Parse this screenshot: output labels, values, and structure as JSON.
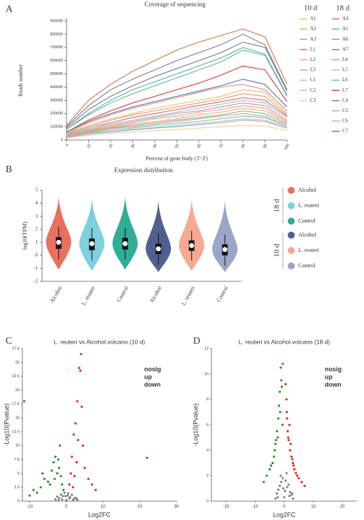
{
  "chart_data": [
    {
      "panel": "A",
      "type": "line",
      "title": "Coverage of sequencing",
      "xlabel": "Percent of gene body (5'-3')",
      "ylabel": "Reads number",
      "xlim": [
        0,
        100
      ],
      "xticks": [
        0,
        10,
        20,
        30,
        40,
        50,
        60,
        70,
        80,
        90,
        100
      ],
      "ylim": [
        0,
        900000
      ],
      "yticks": [
        0,
        100000,
        200000,
        300000,
        400000,
        500000,
        600000,
        700000,
        800000,
        900000
      ],
      "x": [
        0,
        10,
        20,
        30,
        40,
        50,
        60,
        70,
        80,
        90,
        100
      ],
      "series_groups": [
        {
          "name": "10 d",
          "series": [
            {
              "name": "A1",
              "color": "#f0c070",
              "values": [
                50000,
                110000,
                160000,
                200000,
                240000,
                270000,
                300000,
                330000,
                380000,
                360000,
                200000
              ]
            },
            {
              "name": "A2",
              "color": "#d9a080",
              "values": [
                45000,
                100000,
                150000,
                190000,
                220000,
                250000,
                280000,
                310000,
                350000,
                330000,
                190000
              ]
            },
            {
              "name": "A3",
              "color": "#c8a090",
              "values": [
                35000,
                80000,
                110000,
                140000,
                170000,
                200000,
                220000,
                250000,
                280000,
                260000,
                150000
              ]
            },
            {
              "name": "L1",
              "color": "#e87060",
              "values": [
                40000,
                90000,
                130000,
                170000,
                200000,
                230000,
                260000,
                290000,
                320000,
                300000,
                180000
              ]
            },
            {
              "name": "L2",
              "color": "#f0a0a0",
              "values": [
                35000,
                75000,
                100000,
                130000,
                160000,
                180000,
                210000,
                230000,
                260000,
                240000,
                140000
              ]
            },
            {
              "name": "L3",
              "color": "#80c0d0",
              "values": [
                25000,
                55000,
                75000,
                90000,
                110000,
                125000,
                140000,
                160000,
                180000,
                170000,
                100000
              ]
            },
            {
              "name": "C1",
              "color": "#a0d0b0",
              "values": [
                20000,
                50000,
                65000,
                80000,
                95000,
                110000,
                125000,
                140000,
                160000,
                150000,
                90000
              ]
            },
            {
              "name": "C2",
              "color": "#f0b080",
              "values": [
                30000,
                70000,
                95000,
                120000,
                140000,
                160000,
                190000,
                210000,
                240000,
                220000,
                130000
              ]
            },
            {
              "name": "C3",
              "color": "#f8d0a0",
              "values": [
                15000,
                35000,
                50000,
                60000,
                70000,
                80000,
                90000,
                100000,
                110000,
                105000,
                70000
              ]
            }
          ]
        },
        {
          "name": "18 d",
          "series": [
            {
              "name": "A4",
              "color": "#d08050",
              "values": [
                110000,
                300000,
                420000,
                520000,
                600000,
                680000,
                740000,
                790000,
                840000,
                780000,
                420000
              ]
            },
            {
              "name": "A5",
              "color": "#60b0c0",
              "values": [
                80000,
                200000,
                300000,
                380000,
                440000,
                500000,
                560000,
                620000,
                700000,
                650000,
                340000
              ]
            },
            {
              "name": "A6",
              "color": "#70b8a0",
              "values": [
                80000,
                190000,
                280000,
                350000,
                410000,
                470000,
                530000,
                590000,
                680000,
                640000,
                330000
              ]
            },
            {
              "name": "A7",
              "color": "#8080a0",
              "values": [
                100000,
                260000,
                380000,
                460000,
                530000,
                600000,
                660000,
                720000,
                800000,
                720000,
                380000
              ]
            },
            {
              "name": "L4",
              "color": "#f09080",
              "values": [
                50000,
                130000,
                190000,
                240000,
                280000,
                320000,
                360000,
                400000,
                420000,
                380000,
                220000
              ]
            },
            {
              "name": "L5",
              "color": "#a0c0e0",
              "values": [
                40000,
                90000,
                120000,
                150000,
                180000,
                210000,
                240000,
                270000,
                300000,
                280000,
                170000
              ]
            },
            {
              "name": "L6",
              "color": "#70c0b0",
              "values": [
                30000,
                65000,
                90000,
                110000,
                130000,
                150000,
                170000,
                190000,
                220000,
                200000,
                120000
              ]
            },
            {
              "name": "L7",
              "color": "#e04040",
              "values": [
                60000,
                150000,
                220000,
                280000,
                330000,
                380000,
                430000,
                490000,
                560000,
                530000,
                290000
              ]
            },
            {
              "name": "C4",
              "color": "#808080",
              "values": [
                90000,
                230000,
                330000,
                410000,
                480000,
                540000,
                600000,
                660000,
                740000,
                700000,
                370000
              ]
            },
            {
              "name": "C5",
              "color": "#c0a0d0",
              "values": [
                20000,
                45000,
                60000,
                75000,
                90000,
                100000,
                115000,
                130000,
                150000,
                140000,
                90000
              ]
            },
            {
              "name": "C6",
              "color": "#f0a070",
              "values": [
                25000,
                60000,
                85000,
                100000,
                120000,
                140000,
                160000,
                180000,
                200000,
                180000,
                110000
              ]
            },
            {
              "name": "C7",
              "color": "#5080b0",
              "values": [
                60000,
                140000,
                200000,
                250000,
                290000,
                330000,
                370000,
                410000,
                460000,
                420000,
                250000
              ]
            }
          ]
        }
      ]
    },
    {
      "panel": "B",
      "type": "violin",
      "title": "Expression distribution",
      "ylabel": "log10(TPM)",
      "ylim": [
        -2,
        5
      ],
      "yticks": [
        -2,
        -1,
        0,
        1,
        2,
        3,
        4,
        5
      ],
      "groups": [
        {
          "name": "18 d",
          "series": [
            {
              "name": "Alcohol",
              "color": "#e8705e",
              "min": -1.1,
              "whisker_low": -0.3,
              "q1": 0.5,
              "median": 1.0,
              "q3": 1.4,
              "whisker_high": 2.2,
              "max": 4.5
            },
            {
              "name": "L. reuteri",
              "color": "#7ecfe0",
              "min": -1.2,
              "whisker_low": -0.4,
              "q1": 0.4,
              "median": 0.9,
              "q3": 1.3,
              "whisker_high": 2.1,
              "max": 4.4
            },
            {
              "name": "Control",
              "color": "#2eae96",
              "min": -1.1,
              "whisker_low": -0.3,
              "q1": 0.45,
              "median": 0.9,
              "q3": 1.35,
              "whisker_high": 2.1,
              "max": 4.5
            }
          ]
        },
        {
          "name": "10 d",
          "series": [
            {
              "name": "Alcohol",
              "color": "#4f5f8f",
              "min": -1.3,
              "whisker_low": -0.7,
              "q1": 0.1,
              "median": 0.5,
              "q3": 0.9,
              "whisker_high": 1.7,
              "max": 4.2
            },
            {
              "name": "L. reuteri",
              "color": "#f5a892",
              "min": -1.2,
              "whisker_low": -0.4,
              "q1": 0.35,
              "median": 0.75,
              "q3": 1.15,
              "whisker_high": 1.9,
              "max": 4.3
            },
            {
              "name": "Control",
              "color": "#9aa5c8",
              "min": -1.3,
              "whisker_low": -0.8,
              "q1": 0.0,
              "median": 0.45,
              "q3": 0.85,
              "whisker_high": 1.6,
              "max": 4.2
            }
          ]
        }
      ]
    },
    {
      "panel": "C",
      "type": "scatter",
      "title": "L. reuteri vs Alcohol.volcano (10 d)",
      "xlabel": "Log2FC",
      "ylabel": "-Log10(Pvalue)",
      "xlim": [
        -12,
        30
      ],
      "xticks": [
        -10,
        0,
        10,
        20,
        30
      ],
      "ylim": [
        0,
        27.5
      ],
      "yticks": [
        0,
        2.5,
        5,
        7.5,
        10,
        12.5,
        15,
        17.5,
        20,
        22.5,
        25,
        27.5
      ],
      "series": [
        {
          "name": "nosig",
          "color": "#808080",
          "x": [
            -3,
            -2.5,
            -2,
            -1.5,
            -1,
            -0.5,
            0,
            0.5,
            1,
            1.5,
            2,
            2.5,
            3,
            -1.2,
            0.8,
            -0.3,
            0.3,
            1.8,
            -2.2,
            2.8
          ],
          "values": [
            0.3,
            0.8,
            0.5,
            1.2,
            0.9,
            1.5,
            0.2,
            1.4,
            0.7,
            1.1,
            0.4,
            0.6,
            0.2,
            0.3,
            0.5,
            0.9,
            1.0,
            0.2,
            0.1,
            0.4
          ]
        },
        {
          "name": "up",
          "color": "#e02020",
          "x": [
            0.8,
            1.2,
            1.5,
            2,
            2.5,
            3,
            3.5,
            4,
            4.5,
            5,
            6,
            7,
            8,
            1.8,
            2.2,
            3.2,
            3.8,
            2.8,
            4.2,
            22
          ],
          "values": [
            3,
            5,
            8,
            12,
            14,
            18,
            24,
            26.5,
            10,
            6,
            4,
            3,
            2,
            2.5,
            4.5,
            11,
            23.5,
            7,
            17,
            7.8
          ]
        },
        {
          "name": "down",
          "color": "#2a8a2a",
          "x": [
            -0.8,
            -1.2,
            -1.5,
            -2,
            -2.5,
            -3,
            -3.5,
            -4,
            -5,
            -6,
            -7,
            -8,
            -10,
            -11.5,
            -1.8,
            -2.2,
            -3.2,
            -4.5,
            -6.5,
            -9
          ],
          "values": [
            2,
            3,
            4.5,
            6,
            5,
            8,
            7,
            5.5,
            3.5,
            4,
            2.5,
            1.5,
            1,
            18,
            10,
            7.5,
            4,
            3,
            5,
            2
          ]
        }
      ]
    },
    {
      "panel": "D",
      "type": "scatter",
      "title": "L. reuteri vs Alcohol.volcano (18 d)",
      "xlabel": "Log2FC",
      "ylabel": "-Log10(Pvalue)",
      "xlim": [
        -25,
        25
      ],
      "xticks": [
        -20,
        -10,
        0,
        10,
        20
      ],
      "ylim": [
        0,
        12
      ],
      "yticks": [
        0,
        2,
        4,
        6,
        8,
        10,
        12
      ],
      "series": [
        {
          "name": "nosig",
          "color": "#808080",
          "x": [
            -3,
            -2.5,
            -2,
            -1.5,
            -1,
            -0.5,
            0,
            0.5,
            1,
            1.5,
            2,
            2.5,
            3,
            -1.2,
            0.8,
            -0.3,
            0.3,
            1.8,
            -2.2,
            2.8
          ],
          "values": [
            0.2,
            0.6,
            0.9,
            1.2,
            1.5,
            1.8,
            0.3,
            1.6,
            1.1,
            1.3,
            0.7,
            0.5,
            0.2,
            2,
            2.2,
            1,
            0.8,
            0.4,
            0.3,
            0.6
          ]
        },
        {
          "name": "up",
          "color": "#e02020",
          "x": [
            0.5,
            0.8,
            1,
            1.2,
            1.5,
            2,
            2.5,
            3,
            3.5,
            4,
            5,
            6,
            1.8,
            2.2,
            0.9,
            1.4,
            3.2,
            2.8,
            4.5,
            7
          ],
          "values": [
            9.2,
            8,
            6.5,
            5.5,
            4.8,
            4,
            3.5,
            3,
            2.5,
            2.2,
            1.8,
            1.5,
            6,
            4.5,
            7,
            5,
            2.8,
            3.3,
            2,
            1.2
          ]
        },
        {
          "name": "down",
          "color": "#2a8a2a",
          "x": [
            -0.5,
            -1,
            -1.5,
            -2,
            -2.5,
            -3,
            -3.5,
            -4,
            -5,
            -6,
            -7,
            -1.2,
            -1.8,
            -0.8,
            -2.2,
            -3.2,
            -4.5,
            -2.8,
            -1.4,
            -0.6
          ],
          "values": [
            10.8,
            9.5,
            8.6,
            6.5,
            5.5,
            4.5,
            3.5,
            3,
            2.5,
            2,
            1.5,
            10.5,
            7.5,
            9,
            5,
            4,
            2.8,
            4.8,
            7,
            6
          ]
        }
      ]
    }
  ]
}
